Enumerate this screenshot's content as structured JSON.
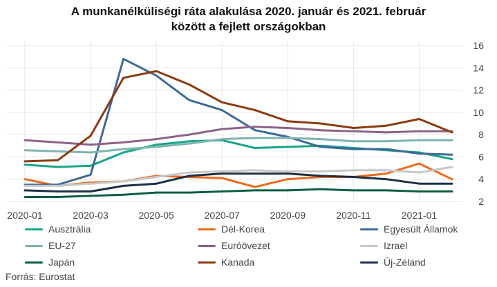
{
  "chart_data": {
    "type": "line",
    "title_lines": [
      "A munkanélküliségi ráta alakulása 2020. január és 2021. február",
      "között a fejlett országokban"
    ],
    "x": [
      "2020-01",
      "2020-02",
      "2020-03",
      "2020-04",
      "2020-05",
      "2020-06",
      "2020-07",
      "2020-08",
      "2020-09",
      "2020-10",
      "2020-11",
      "2020-12",
      "2021-01",
      "2021-02"
    ],
    "x_tick_labels": [
      "2020-01",
      "2020-03",
      "2020-05",
      "2020-07",
      "2020-09",
      "2020-11",
      "2021-01"
    ],
    "y_ticks": [
      "2",
      "4",
      "6",
      "8",
      "10",
      "12",
      "14",
      "16"
    ],
    "ylim": [
      2,
      16
    ],
    "y_axis_position": "right",
    "grid": true,
    "legend_position": "bottom",
    "series": [
      {
        "name": "Ausztrália",
        "color": "#17a589",
        "values": [
          5.3,
          5.1,
          5.2,
          6.4,
          7.1,
          7.4,
          7.5,
          6.8,
          6.9,
          7.0,
          6.8,
          6.6,
          6.4,
          5.8
        ]
      },
      {
        "name": "Dél-Korea",
        "color": "#ee6a1a",
        "values": [
          4.0,
          3.4,
          3.7,
          3.8,
          4.3,
          4.2,
          4.1,
          3.3,
          4.0,
          4.2,
          4.2,
          4.5,
          5.4,
          4.0
        ]
      },
      {
        "name": "Egyesült Államok",
        "color": "#3d6a97",
        "values": [
          3.5,
          3.5,
          4.4,
          14.8,
          13.3,
          11.1,
          10.2,
          8.4,
          7.8,
          6.9,
          6.7,
          6.7,
          6.3,
          6.2
        ]
      },
      {
        "name": "EU-27",
        "color": "#7fb3b0",
        "values": [
          6.6,
          6.5,
          6.4,
          6.7,
          6.9,
          7.2,
          7.6,
          7.7,
          7.7,
          7.6,
          7.4,
          7.4,
          7.5,
          7.5
        ]
      },
      {
        "name": "Euróövezet",
        "color": "#8b6388",
        "values": [
          7.5,
          7.3,
          7.1,
          7.3,
          7.6,
          8.0,
          8.5,
          8.7,
          8.6,
          8.4,
          8.3,
          8.2,
          8.3,
          8.3
        ]
      },
      {
        "name": "Izrael",
        "color": "#c8c8c8",
        "values": [
          3.4,
          3.4,
          3.6,
          3.8,
          4.2,
          4.6,
          4.7,
          4.8,
          4.7,
          4.7,
          4.8,
          4.8,
          4.6,
          5.1
        ]
      },
      {
        "name": "Japán",
        "color": "#0b5e40",
        "values": [
          2.4,
          2.4,
          2.5,
          2.6,
          2.8,
          2.8,
          2.9,
          3.0,
          3.0,
          3.1,
          3.0,
          3.0,
          2.9,
          2.9
        ]
      },
      {
        "name": "Kanada",
        "color": "#8b3a0e",
        "values": [
          5.6,
          5.7,
          7.9,
          13.1,
          13.7,
          12.5,
          10.9,
          10.2,
          9.2,
          9.0,
          8.6,
          8.8,
          9.4,
          8.2
        ]
      },
      {
        "name": "Új-Zéland",
        "color": "#1c2f45",
        "values": [
          3.0,
          2.9,
          2.9,
          3.4,
          3.6,
          4.3,
          4.5,
          4.5,
          4.5,
          4.3,
          4.2,
          4.0,
          3.6,
          3.6
        ]
      }
    ]
  },
  "footer": {
    "source": "Forrás: Eurostat"
  }
}
